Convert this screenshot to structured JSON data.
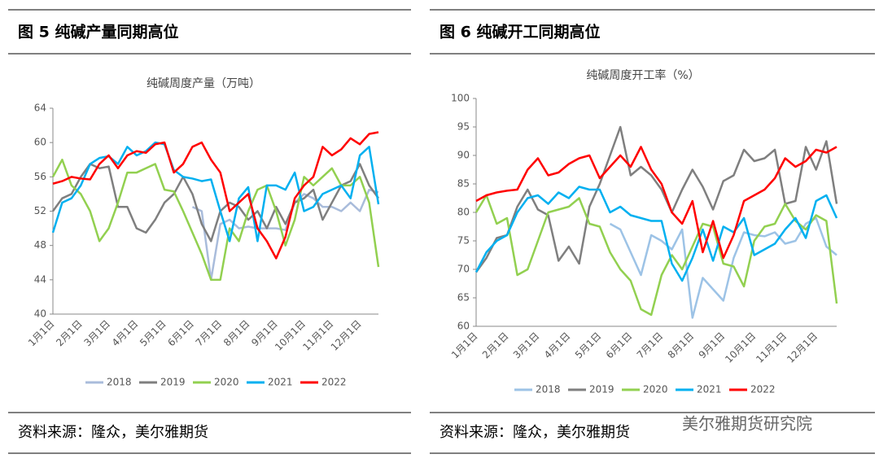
{
  "panels": [
    {
      "title": "图 5  纯碱产量同期高位",
      "source": "资料来源：隆众，美尔雅期货"
    },
    {
      "title": "图 6    纯碱开工同期高位",
      "source": "资料来源：隆众，美尔雅期货"
    }
  ],
  "watermark": "美尔雅期货研究院",
  "chart_data": [
    {
      "type": "line",
      "title": "纯碱周度产量（万吨）",
      "categories": [
        "1月1日",
        null,
        null,
        "2月1日",
        null,
        null,
        "3月1日",
        null,
        null,
        "4月1日",
        null,
        null,
        "5月1日",
        null,
        null,
        "6月1日",
        null,
        null,
        "7月1日",
        null,
        null,
        "8月1日",
        null,
        null,
        "9月1日",
        null,
        null,
        "10月1日",
        null,
        null,
        "11月1日",
        null,
        null,
        "12月1日",
        null,
        null
      ],
      "ylim": [
        40,
        64
      ],
      "yticks": [
        40,
        44,
        48,
        52,
        56,
        60,
        64
      ],
      "series": [
        {
          "name": "2018",
          "color": "#a9bcdb",
          "values": [
            null,
            null,
            null,
            null,
            null,
            null,
            null,
            null,
            null,
            null,
            null,
            null,
            null,
            null,
            null,
            52.5,
            52,
            44,
            50.5,
            51,
            50,
            50.2,
            50,
            50,
            50,
            49.8,
            53,
            54,
            53.5,
            52.5,
            52.5,
            52,
            53,
            52,
            54.5,
            54.2
          ]
        },
        {
          "name": "2019",
          "color": "#7f7f7f",
          "values": [
            52,
            53.5,
            54,
            56,
            57.5,
            57,
            57.2,
            52.5,
            52.5,
            50,
            49.5,
            51,
            53,
            54,
            56,
            54,
            50.5,
            48.5,
            52,
            53,
            52.5,
            51,
            52,
            50,
            52.5,
            50.5,
            53,
            53.5,
            54.5,
            51,
            53,
            55,
            55.5,
            57.5,
            55,
            53.5
          ]
        },
        {
          "name": "2020",
          "color": "#92d050",
          "values": [
            56,
            58,
            55,
            54,
            52,
            48.5,
            50,
            53,
            56.5,
            56.5,
            57,
            57.5,
            54.5,
            54.3,
            52,
            49.5,
            47,
            44,
            44,
            50,
            48.5,
            52,
            54.5,
            55,
            52,
            48,
            51,
            56,
            55,
            56,
            57,
            55,
            55,
            56,
            53,
            45.5
          ]
        },
        {
          "name": "2021",
          "color": "#00b0f0",
          "values": [
            49.5,
            53,
            53.5,
            55,
            57.5,
            58.2,
            58.4,
            57.5,
            59.5,
            58.5,
            59,
            60,
            59.8,
            56.8,
            56,
            55.8,
            55.5,
            55.7,
            52,
            48.5,
            53.5,
            54.8,
            48.5,
            55,
            55,
            54.5,
            56.5,
            52,
            52.5,
            54,
            54.5,
            55,
            53.5,
            58.5,
            59.5,
            52.8
          ]
        },
        {
          "name": "2022",
          "color": "#ff0000",
          "values": [
            55.2,
            55.5,
            56,
            55.8,
            55.7,
            57.5,
            58.5,
            57,
            58.5,
            59,
            58.8,
            59.8,
            60,
            56.5,
            57.5,
            59.5,
            60,
            58,
            56.5,
            52,
            53,
            54,
            50,
            48.5,
            46.5,
            49,
            53.5,
            55,
            56,
            59.5,
            58.5,
            59.2,
            60.5,
            59.8,
            61,
            61.2
          ]
        }
      ]
    },
    {
      "type": "line",
      "title": "纯碱周度开工率（%）",
      "categories": [
        "1月1日",
        null,
        null,
        "2月1日",
        null,
        null,
        "3月1日",
        null,
        null,
        "4月1日",
        null,
        null,
        "5月1日",
        null,
        null,
        "6月1日",
        null,
        null,
        "7月1日",
        null,
        null,
        "8月1日",
        null,
        null,
        "9月1日",
        null,
        null,
        "10月1日",
        null,
        null,
        "11月1日",
        null,
        null,
        "12月1日",
        null,
        null
      ],
      "ylim": [
        60,
        100
      ],
      "yticks": [
        60,
        65,
        70,
        75,
        80,
        85,
        90,
        95,
        100
      ],
      "series": [
        {
          "name": "2018",
          "color": "#9dc3e6",
          "values": [
            null,
            null,
            null,
            null,
            null,
            null,
            null,
            null,
            null,
            null,
            null,
            null,
            null,
            78,
            77,
            73,
            69,
            76,
            75,
            73.5,
            77,
            61.5,
            68.5,
            66.5,
            64.5,
            72,
            76.5,
            76,
            75.8,
            76.5,
            74.5,
            75,
            78,
            79,
            74,
            72.5
          ]
        },
        {
          "name": "2019",
          "color": "#7f7f7f",
          "values": [
            69.5,
            72,
            75.5,
            76,
            81,
            84,
            80.5,
            79.5,
            71.5,
            74,
            71,
            81,
            85,
            90,
            95,
            86.5,
            88,
            86.5,
            84,
            80,
            84,
            87.5,
            84.5,
            80.5,
            85.5,
            86.5,
            91,
            89,
            89.5,
            91,
            81.5,
            82,
            91.5,
            87.5,
            92.5,
            81.5
          ]
        },
        {
          "name": "2020",
          "color": "#92d050",
          "values": [
            80,
            83,
            78,
            79,
            69,
            70,
            75,
            80,
            80.5,
            81,
            82.5,
            78,
            77.5,
            73,
            70,
            68,
            63,
            62,
            69,
            72.5,
            70,
            74,
            78,
            77.5,
            71,
            70.5,
            67,
            75,
            77.5,
            78,
            81.5,
            78.5,
            77,
            79.5,
            78.5,
            64
          ]
        },
        {
          "name": "2021",
          "color": "#00b0f0",
          "values": [
            69.5,
            73,
            75,
            76,
            80,
            82.5,
            83,
            81.5,
            83.5,
            82.5,
            84.5,
            84,
            84,
            80,
            81,
            79.5,
            79,
            78.5,
            78.5,
            71,
            68,
            72,
            77,
            71.5,
            77.5,
            76.5,
            79,
            72.5,
            73.5,
            74.5,
            77,
            79,
            75.5,
            82,
            83,
            79
          ]
        },
        {
          "name": "2022",
          "color": "#ff0000",
          "values": [
            82,
            83,
            83.5,
            83.8,
            84,
            87.5,
            89.5,
            86.5,
            87,
            88.5,
            89.5,
            90,
            86,
            88,
            90,
            88,
            91.5,
            87.5,
            85,
            80,
            78,
            82,
            73,
            78.5,
            72,
            76,
            82,
            83,
            84,
            86,
            89.5,
            88,
            89,
            91,
            90.5,
            91.5
          ]
        }
      ]
    }
  ]
}
